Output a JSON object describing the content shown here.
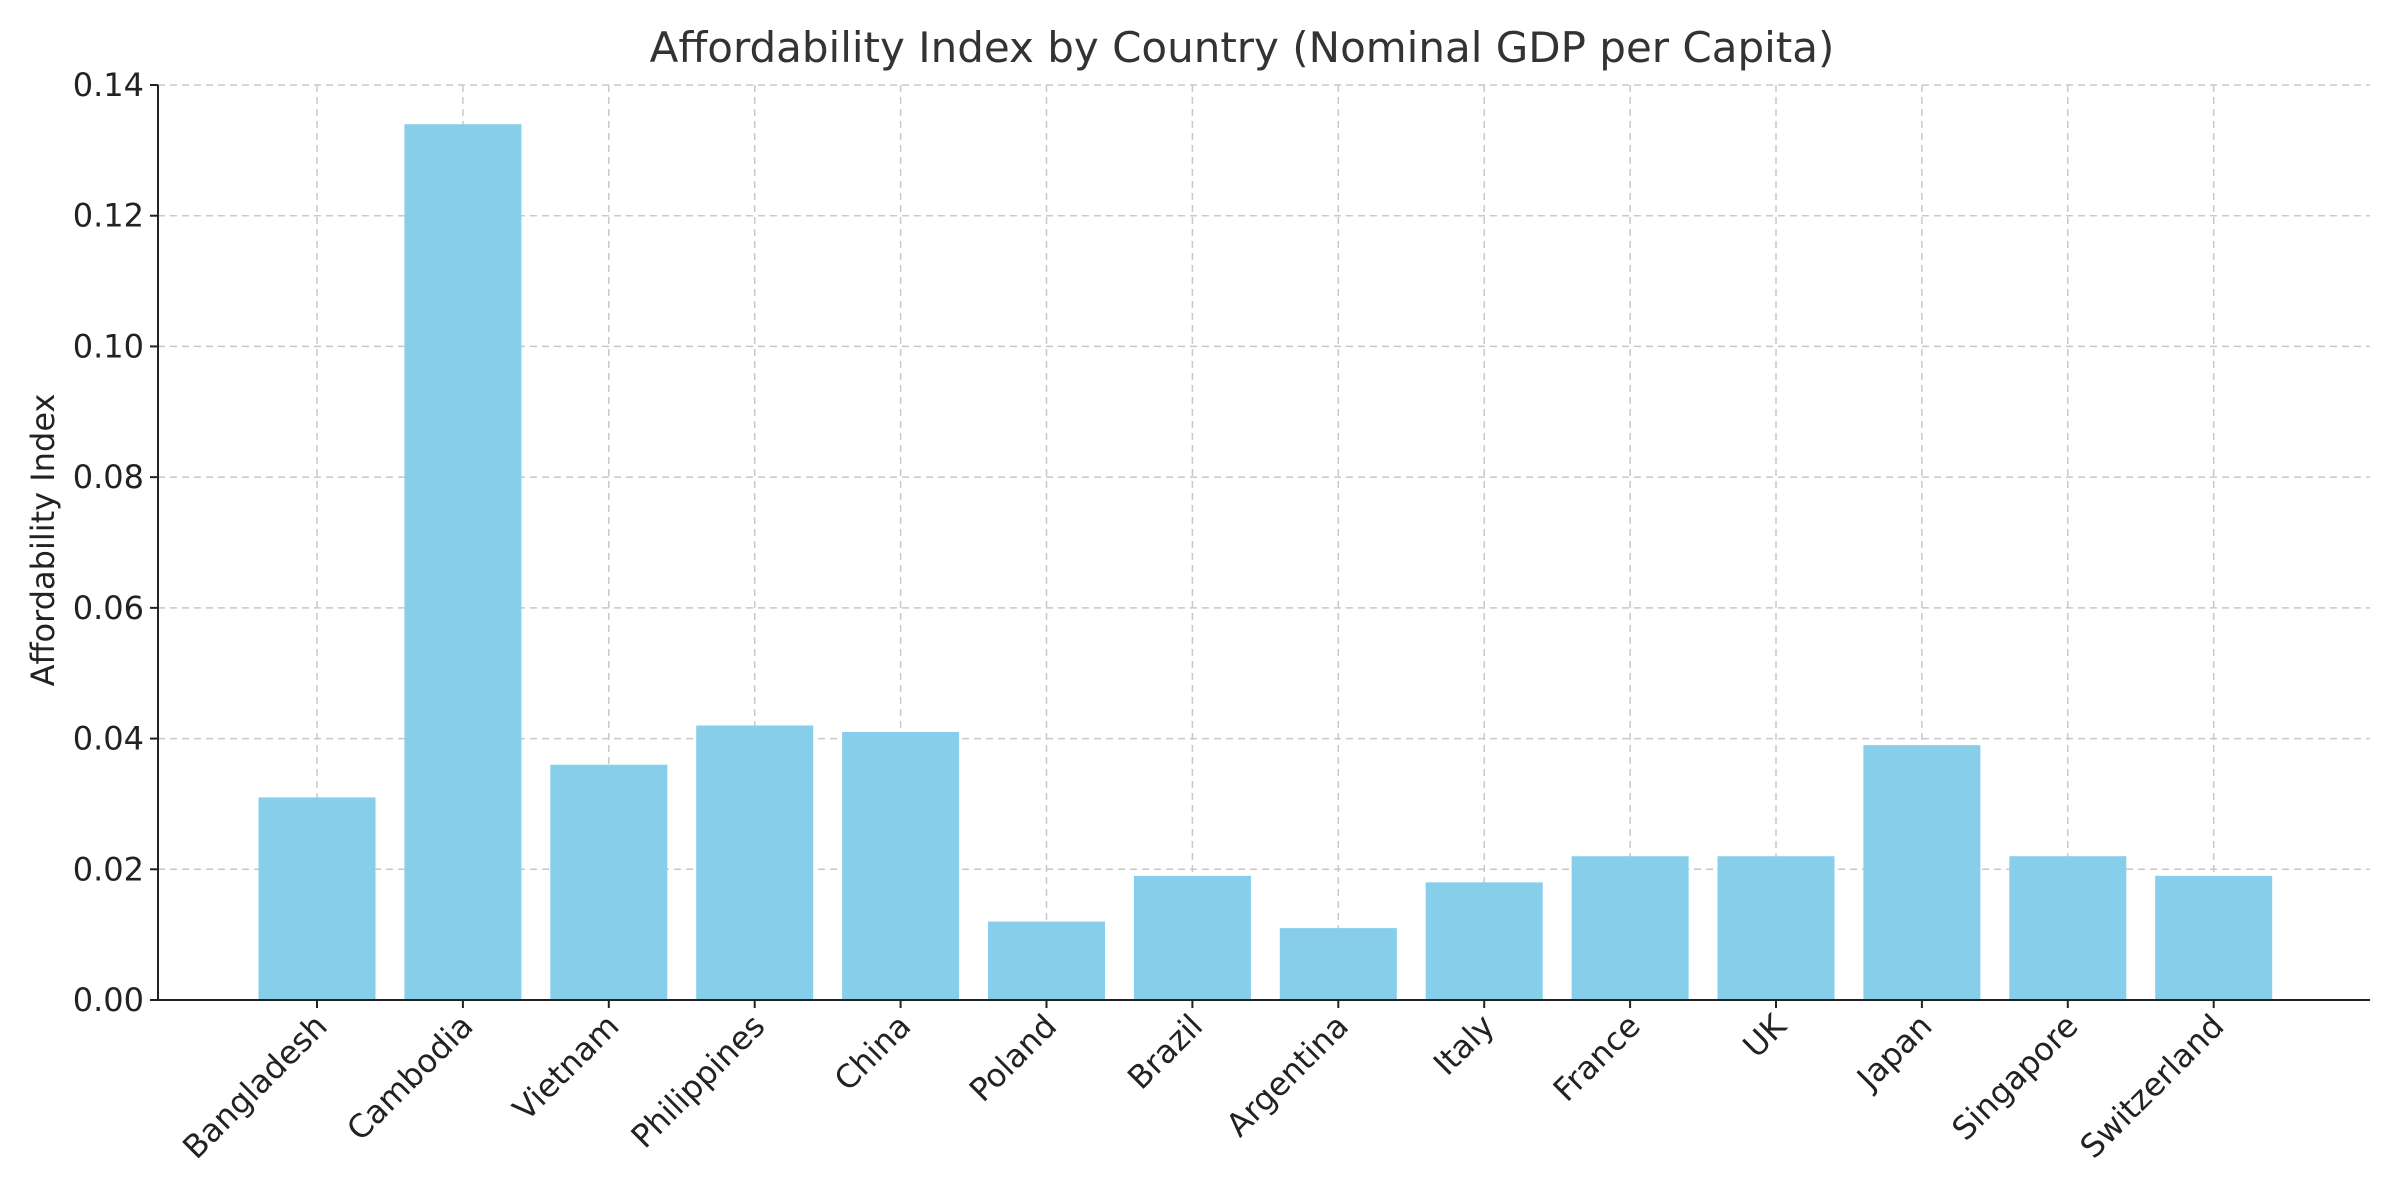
{
  "chart_data": {
    "type": "bar",
    "title": "Affordability Index by Country (Nominal GDP per Capita)",
    "xlabel": "",
    "ylabel": "Affordability Index",
    "categories": [
      "Bangladesh",
      "Cambodia",
      "Vietnam",
      "Philippines",
      "China",
      "Poland",
      "Brazil",
      "Argentina",
      "Italy",
      "France",
      "UK",
      "Japan",
      "Singapore",
      "Switzerland"
    ],
    "values": [
      0.031,
      0.134,
      0.036,
      0.042,
      0.041,
      0.012,
      0.019,
      0.011,
      0.018,
      0.022,
      0.022,
      0.039,
      0.022,
      0.019
    ],
    "ylim": [
      0,
      0.14
    ],
    "yticks": [
      "0.00",
      "0.02",
      "0.04",
      "0.06",
      "0.08",
      "0.10",
      "0.12",
      "0.14"
    ],
    "grid": true,
    "bar_color": "#87CEEB"
  }
}
